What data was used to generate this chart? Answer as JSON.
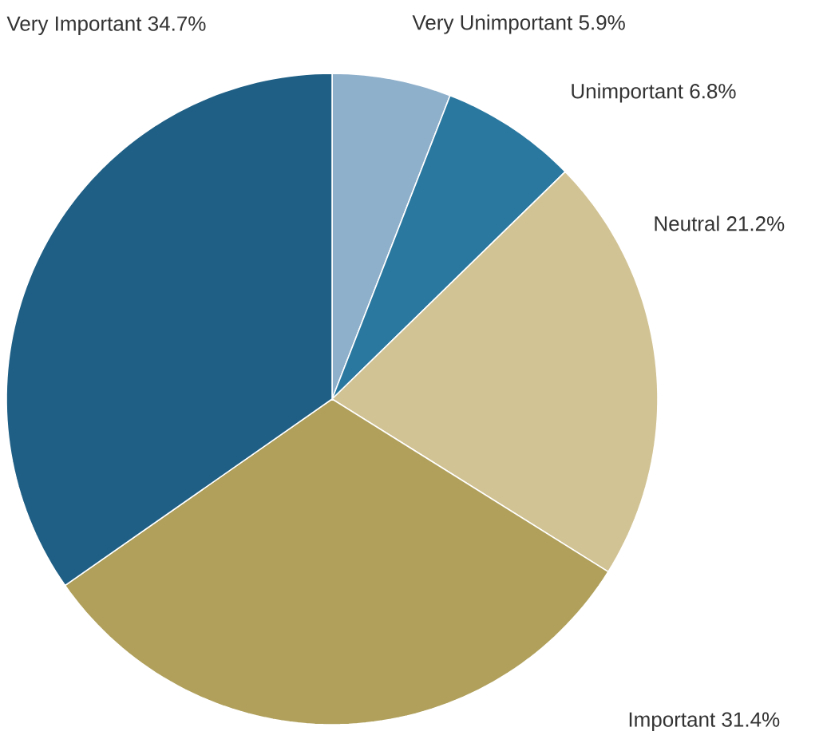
{
  "chart_data": {
    "type": "pie",
    "categories": [
      "Very Unimportant",
      "Unimportant",
      "Neutral",
      "Important",
      "Very Important"
    ],
    "values": [
      5.9,
      6.8,
      21.2,
      31.4,
      34.7
    ],
    "value_labels": [
      "5.9%",
      "6.8%",
      "21.2%",
      "31.4%",
      "34.7%"
    ],
    "colors": [
      "#8fb0cb",
      "#2a78a0",
      "#d2c395",
      "#b0a05c",
      "#1f5f85"
    ]
  }
}
